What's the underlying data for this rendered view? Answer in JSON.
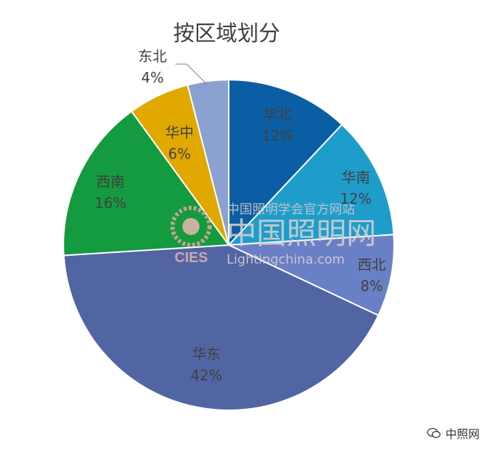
{
  "chart_data": {
    "type": "pie",
    "title": "按区域划分",
    "categories": [
      "华北",
      "华南",
      "西北",
      "华东",
      "西南",
      "华中",
      "东北"
    ],
    "values": [
      12,
      12,
      8,
      42,
      16,
      6,
      4
    ],
    "value_labels": [
      "12%",
      "12%",
      "8%",
      "42%",
      "16%",
      "6%",
      "4%"
    ],
    "colors": [
      "#0b5ea3",
      "#1e9dcb",
      "#6a80c6",
      "#5165a3",
      "#149a3f",
      "#e1a800",
      "#8ba1cf"
    ],
    "legend": "none"
  },
  "watermark": {
    "line1": "中国照明学会官方网站",
    "line2": "中国照明网",
    "line3": "Lightingchina.com",
    "logo": "CIES"
  },
  "brand": {
    "label": "中照网",
    "icon": "wechat-icon"
  }
}
